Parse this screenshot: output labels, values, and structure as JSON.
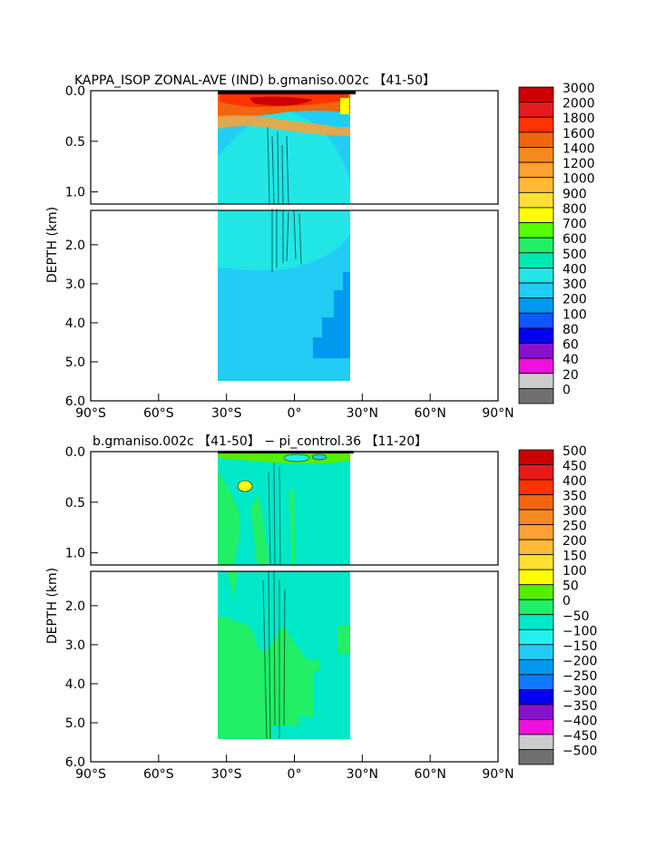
{
  "chart_data": [
    {
      "type": "heatmap",
      "title": "KAPPA_ISOP ZONAL-AVE (IND) b.gmaniso.002c 【41-50】",
      "ylabel": "DEPTH (km)",
      "xticks": [
        "90°S",
        "60°S",
        "30°S",
        "0°",
        "30°N",
        "60°N",
        "90°N"
      ],
      "yticks_top": [
        "0.0",
        "0.5",
        "1.0"
      ],
      "yticks_bottom": [
        "2.0",
        "3.0",
        "4.0",
        "5.0",
        "6.0"
      ],
      "xlim": [
        -90,
        90
      ],
      "ylim": [
        6.0,
        0.0
      ],
      "colorbar": {
        "labels": [
          "3000",
          "2000",
          "1800",
          "1600",
          "1400",
          "1200",
          "1000",
          "900",
          "800",
          "700",
          "600",
          "500",
          "400",
          "300",
          "200",
          "100",
          "80",
          "60",
          "40",
          "20",
          "0"
        ],
        "colors": [
          "#cc0000",
          "#e61a1a",
          "#ff3300",
          "#f0650e",
          "#f58a1f",
          "#ffa033",
          "#ffbb33",
          "#ffe033",
          "#ffff00",
          "#55ff00",
          "#22ee66",
          "#00e8b0",
          "#22e6e6",
          "#22ccf5",
          "#0099f0",
          "#1155ff",
          "#0000ee",
          "#8811cc",
          "#ee11dd",
          "#cccccc",
          "#707070"
        ]
      }
    },
    {
      "type": "heatmap",
      "title": "b.gmaniso.002c 【41-50】 − pi_control.36 【11-20】",
      "ylabel": "DEPTH (km)",
      "xticks": [
        "90°S",
        "60°S",
        "30°S",
        "0°",
        "30°N",
        "60°N",
        "90°N"
      ],
      "yticks_top": [
        "0.0",
        "0.5",
        "1.0"
      ],
      "yticks_bottom": [
        "2.0",
        "3.0",
        "4.0",
        "5.0",
        "6.0"
      ],
      "xlim": [
        -90,
        90
      ],
      "ylim": [
        6.0,
        0.0
      ],
      "colorbar": {
        "labels": [
          "500",
          "450",
          "400",
          "350",
          "300",
          "250",
          "200",
          "150",
          "100",
          "50",
          "0",
          "−50",
          "−100",
          "−150",
          "−200",
          "−250",
          "−300",
          "−350",
          "−400",
          "−450",
          "−500"
        ],
        "colors": [
          "#cc0000",
          "#e61a1a",
          "#ff3300",
          "#f0650e",
          "#f58a1f",
          "#ffa033",
          "#ffbb33",
          "#ffe033",
          "#ffff00",
          "#55ee00",
          "#22ee66",
          "#00e8c8",
          "#22f0f0",
          "#22ccf5",
          "#0099f0",
          "#1177ff",
          "#0000ee",
          "#8811cc",
          "#ee11dd",
          "#cccccc",
          "#707070"
        ]
      }
    }
  ]
}
